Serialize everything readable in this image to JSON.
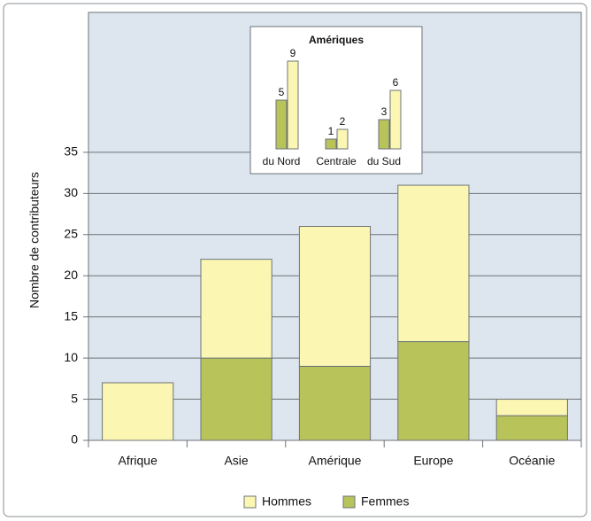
{
  "chart_data": [
    {
      "type": "stacked_bar",
      "categories": [
        "Afrique",
        "Asie",
        "Amérique",
        "Europe",
        "Océanie"
      ],
      "series": [
        {
          "name": "Hommes",
          "color": "#fbf7b3",
          "values": [
            7,
            12,
            17,
            19,
            2
          ]
        },
        {
          "name": "Femmes",
          "color": "#b8c35a",
          "values": [
            0,
            10,
            9,
            12,
            3
          ]
        }
      ],
      "y_label": "Nombre de contributeurs",
      "ylim": [
        0,
        52
      ],
      "yticks": [
        0,
        5,
        10,
        15,
        20,
        25,
        30,
        35
      ],
      "grid": true,
      "legend": "bottom"
    },
    {
      "type": "grouped_bar",
      "title": "Amériques",
      "categories": [
        "du Nord",
        "Centrale",
        "du Sud"
      ],
      "series": [
        {
          "name": "Femmes",
          "color": "#b8c35a",
          "values": [
            5,
            1,
            3
          ]
        },
        {
          "name": "Hommes",
          "color": "#fbf7b3",
          "values": [
            9,
            2,
            6
          ]
        }
      ],
      "ylim": [
        0,
        10
      ]
    }
  ]
}
